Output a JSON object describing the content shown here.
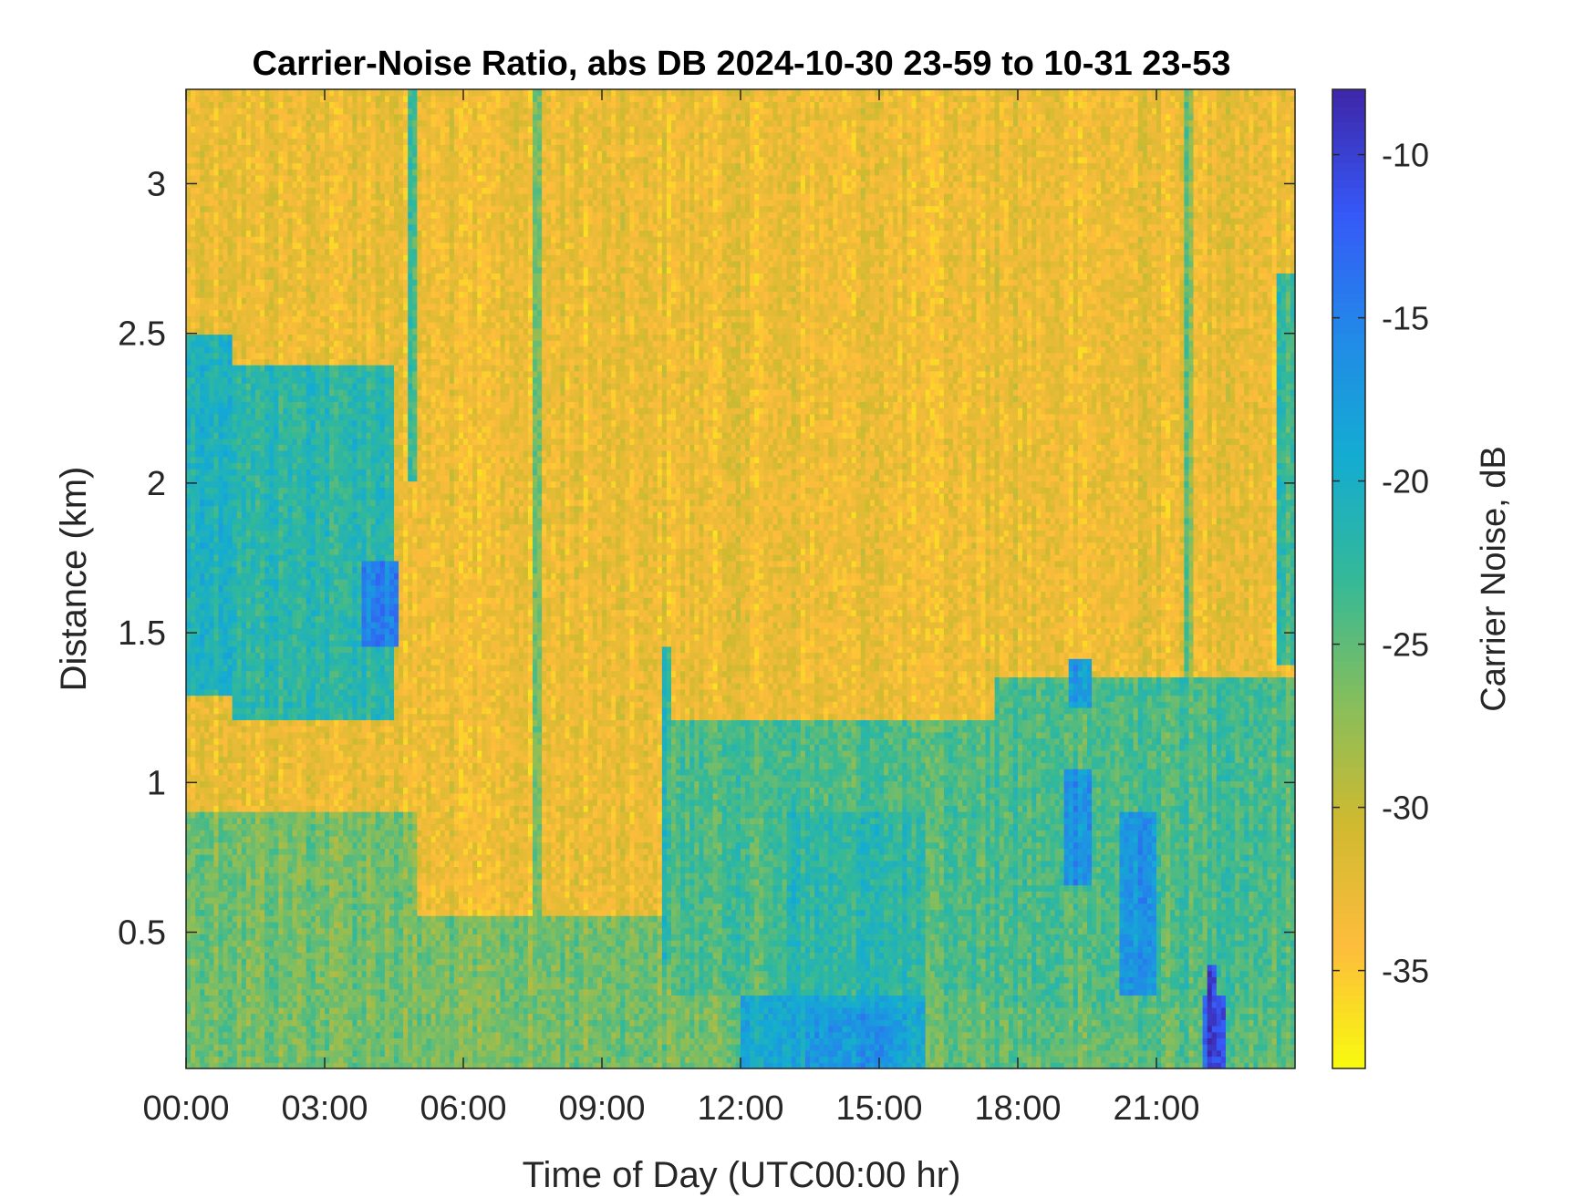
{
  "chart_data": {
    "type": "heatmap",
    "title": "Carrier-Noise Ratio, abs DB 2024-10-30 23-59 to 10-31 23-53",
    "xlabel": "Time of Day (UTC00:00 hr)",
    "ylabel": "Distance (km)",
    "colorbar_label": "Carrier Noise, dB",
    "xlim_hours": [
      0,
      24
    ],
    "ylim_km": [
      0.045,
      3.315
    ],
    "clim_db": [
      -38,
      -8
    ],
    "colormap": "parula (reversed: yellow = -38 dB, dark blue = -8 dB)",
    "x_ticks": [
      {
        "value": 0,
        "label": "00:00"
      },
      {
        "value": 3,
        "label": "03:00"
      },
      {
        "value": 6,
        "label": "06:00"
      },
      {
        "value": 9,
        "label": "09:00"
      },
      {
        "value": 12,
        "label": "12:00"
      },
      {
        "value": 15,
        "label": "15:00"
      },
      {
        "value": 18,
        "label": "18:00"
      },
      {
        "value": 21,
        "label": "21:00"
      }
    ],
    "y_ticks": [
      {
        "value": 0.5,
        "label": "0.5"
      },
      {
        "value": 1,
        "label": "1"
      },
      {
        "value": 1.5,
        "label": "1.5"
      },
      {
        "value": 2,
        "label": "2"
      },
      {
        "value": 2.5,
        "label": "2.5"
      },
      {
        "value": 3,
        "label": "3"
      }
    ],
    "colorbar_ticks": [
      {
        "value": -10,
        "label": "-10"
      },
      {
        "value": -15,
        "label": "-15"
      },
      {
        "value": -20,
        "label": "-20"
      },
      {
        "value": -25,
        "label": "-25"
      },
      {
        "value": -30,
        "label": "-30"
      },
      {
        "value": -35,
        "label": "-35"
      }
    ],
    "background_db": -33,
    "regions": [
      {
        "t": [
          0,
          5.0
        ],
        "d": [
          0.045,
          0.9
        ],
        "db": -26
      },
      {
        "t": [
          5.0,
          12.0
        ],
        "d": [
          0.045,
          0.55
        ],
        "db": -26
      },
      {
        "t": [
          12.0,
          24.0
        ],
        "d": [
          0.045,
          0.6
        ],
        "db": -25
      },
      {
        "t": [
          0.0,
          1.0
        ],
        "d": [
          1.3,
          2.5
        ],
        "db": -21
      },
      {
        "t": [
          1.0,
          4.5
        ],
        "d": [
          1.2,
          2.4
        ],
        "db": -22
      },
      {
        "t": [
          3.8,
          4.6
        ],
        "d": [
          1.45,
          1.75
        ],
        "db": -15
      },
      {
        "t": [
          10.5,
          17.5
        ],
        "d": [
          0.3,
          1.2
        ],
        "db": -24
      },
      {
        "t": [
          13.0,
          16.0
        ],
        "d": [
          0.3,
          0.9
        ],
        "db": -22
      },
      {
        "t": [
          17.5,
          24.0
        ],
        "d": [
          0.25,
          1.35
        ],
        "db": -24
      },
      {
        "t": [
          19.1,
          19.6
        ],
        "d": [
          1.25,
          1.42
        ],
        "db": -17
      },
      {
        "t": [
          19.0,
          19.6
        ],
        "d": [
          0.65,
          1.05
        ],
        "db": -16
      },
      {
        "t": [
          20.2,
          21.0
        ],
        "d": [
          0.3,
          0.9
        ],
        "db": -17
      },
      {
        "t": [
          12.0,
          16.0
        ],
        "d": [
          0.045,
          0.3
        ],
        "db": -19
      },
      {
        "t": [
          13.4,
          15.5
        ],
        "d": [
          0.045,
          0.25
        ],
        "db": -17
      },
      {
        "t": [
          22.0,
          22.5
        ],
        "d": [
          0.045,
          0.3
        ],
        "db": -12
      },
      {
        "t": [
          23.6,
          24.0
        ],
        "d": [
          1.4,
          2.7
        ],
        "db": -23
      }
    ],
    "streaks": [
      {
        "t": 4.9,
        "d": [
          2.0,
          3.315
        ],
        "db": -23
      },
      {
        "t": 7.6,
        "d": [
          0.045,
          3.315
        ],
        "db": -26
      },
      {
        "t": 10.4,
        "d": [
          0.4,
          1.45
        ],
        "db": -22
      },
      {
        "t": 21.7,
        "d": [
          0.045,
          3.315
        ],
        "db": -26
      },
      {
        "t": 22.2,
        "d": [
          0.045,
          0.4
        ],
        "db": -10
      }
    ]
  }
}
